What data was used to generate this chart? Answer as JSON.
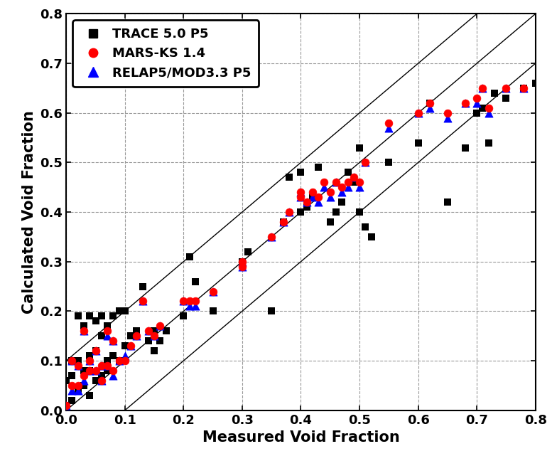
{
  "title": "",
  "xlabel": "Measured Void Fraction",
  "ylabel": "Calculated Void Fraction",
  "xlim": [
    0.0,
    0.8
  ],
  "ylim": [
    0.0,
    0.8
  ],
  "xticks": [
    0.0,
    0.1,
    0.2,
    0.3,
    0.4,
    0.5,
    0.6,
    0.7,
    0.8
  ],
  "yticks": [
    0.0,
    0.1,
    0.2,
    0.3,
    0.4,
    0.5,
    0.6,
    0.7,
    0.8
  ],
  "grid_style": "--",
  "grid_color": "#999999",
  "legend_loc": "upper left",
  "bg_color": "#ffffff",
  "line_color": "#000000",
  "line_width": 1.0,
  "reference_lines": [
    {
      "slope": 1.0,
      "intercept": 0.0
    },
    {
      "slope": 1.0,
      "intercept": 0.1
    },
    {
      "slope": 1.0,
      "intercept": -0.1
    }
  ],
  "trace_x": [
    0.0,
    0.0,
    0.01,
    0.01,
    0.01,
    0.02,
    0.02,
    0.02,
    0.03,
    0.03,
    0.03,
    0.04,
    0.04,
    0.04,
    0.04,
    0.05,
    0.05,
    0.05,
    0.06,
    0.06,
    0.06,
    0.07,
    0.07,
    0.07,
    0.08,
    0.08,
    0.09,
    0.09,
    0.1,
    0.1,
    0.11,
    0.12,
    0.13,
    0.14,
    0.15,
    0.15,
    0.16,
    0.17,
    0.2,
    0.21,
    0.22,
    0.25,
    0.3,
    0.31,
    0.35,
    0.37,
    0.38,
    0.4,
    0.4,
    0.41,
    0.42,
    0.43,
    0.45,
    0.46,
    0.47,
    0.48,
    0.49,
    0.5,
    0.5,
    0.51,
    0.52,
    0.55,
    0.6,
    0.62,
    0.65,
    0.68,
    0.7,
    0.71,
    0.72,
    0.73,
    0.75,
    0.78,
    0.8
  ],
  "trace_y": [
    0.01,
    0.06,
    0.02,
    0.07,
    0.1,
    0.04,
    0.1,
    0.19,
    0.05,
    0.08,
    0.17,
    0.03,
    0.08,
    0.11,
    0.19,
    0.06,
    0.12,
    0.18,
    0.07,
    0.15,
    0.19,
    0.08,
    0.1,
    0.17,
    0.11,
    0.19,
    0.1,
    0.2,
    0.13,
    0.2,
    0.15,
    0.16,
    0.25,
    0.14,
    0.12,
    0.16,
    0.14,
    0.16,
    0.19,
    0.31,
    0.26,
    0.2,
    0.3,
    0.32,
    0.2,
    0.38,
    0.47,
    0.4,
    0.48,
    0.41,
    0.43,
    0.49,
    0.38,
    0.4,
    0.42,
    0.48,
    0.46,
    0.4,
    0.53,
    0.37,
    0.35,
    0.5,
    0.54,
    0.62,
    0.42,
    0.53,
    0.6,
    0.61,
    0.54,
    0.64,
    0.63,
    0.65,
    0.66
  ],
  "mars_x": [
    0.0,
    0.01,
    0.01,
    0.02,
    0.02,
    0.03,
    0.03,
    0.04,
    0.04,
    0.05,
    0.05,
    0.06,
    0.06,
    0.07,
    0.07,
    0.08,
    0.08,
    0.09,
    0.1,
    0.11,
    0.12,
    0.13,
    0.14,
    0.15,
    0.16,
    0.2,
    0.21,
    0.22,
    0.25,
    0.3,
    0.3,
    0.35,
    0.37,
    0.38,
    0.4,
    0.4,
    0.41,
    0.42,
    0.43,
    0.44,
    0.45,
    0.46,
    0.47,
    0.48,
    0.49,
    0.5,
    0.51,
    0.55,
    0.6,
    0.62,
    0.65,
    0.68,
    0.7,
    0.71,
    0.72,
    0.75,
    0.78
  ],
  "mars_y": [
    0.01,
    0.05,
    0.1,
    0.05,
    0.09,
    0.07,
    0.16,
    0.08,
    0.1,
    0.08,
    0.12,
    0.06,
    0.09,
    0.09,
    0.16,
    0.08,
    0.14,
    0.1,
    0.1,
    0.13,
    0.15,
    0.22,
    0.16,
    0.15,
    0.17,
    0.22,
    0.22,
    0.22,
    0.24,
    0.29,
    0.3,
    0.35,
    0.38,
    0.4,
    0.43,
    0.44,
    0.42,
    0.44,
    0.43,
    0.46,
    0.44,
    0.46,
    0.45,
    0.46,
    0.47,
    0.46,
    0.5,
    0.58,
    0.6,
    0.62,
    0.6,
    0.62,
    0.63,
    0.65,
    0.61,
    0.65,
    0.65
  ],
  "relap_x": [
    0.0,
    0.01,
    0.01,
    0.02,
    0.02,
    0.03,
    0.03,
    0.04,
    0.04,
    0.05,
    0.05,
    0.06,
    0.06,
    0.07,
    0.07,
    0.08,
    0.08,
    0.09,
    0.1,
    0.11,
    0.12,
    0.13,
    0.14,
    0.15,
    0.16,
    0.2,
    0.21,
    0.22,
    0.25,
    0.3,
    0.3,
    0.35,
    0.37,
    0.38,
    0.4,
    0.4,
    0.41,
    0.42,
    0.43,
    0.44,
    0.45,
    0.46,
    0.47,
    0.48,
    0.49,
    0.5,
    0.51,
    0.55,
    0.6,
    0.62,
    0.65,
    0.68,
    0.7,
    0.71,
    0.72,
    0.75,
    0.78
  ],
  "relap_y": [
    0.01,
    0.04,
    0.1,
    0.04,
    0.09,
    0.06,
    0.16,
    0.08,
    0.1,
    0.08,
    0.12,
    0.06,
    0.09,
    0.09,
    0.15,
    0.07,
    0.14,
    0.1,
    0.11,
    0.13,
    0.15,
    0.22,
    0.16,
    0.15,
    0.17,
    0.22,
    0.21,
    0.21,
    0.24,
    0.29,
    0.3,
    0.35,
    0.38,
    0.4,
    0.43,
    0.44,
    0.42,
    0.43,
    0.42,
    0.45,
    0.43,
    0.46,
    0.44,
    0.45,
    0.47,
    0.45,
    0.5,
    0.57,
    0.6,
    0.61,
    0.59,
    0.62,
    0.62,
    0.65,
    0.6,
    0.65,
    0.65
  ],
  "trace_color": "#000000",
  "mars_color": "#ff0000",
  "relap_color": "#0000ff",
  "trace_marker": "s",
  "mars_marker": "o",
  "relap_marker": "^",
  "marker_size_trace": 55,
  "marker_size_mars": 60,
  "marker_size_relap": 65,
  "legend_labels": [
    "TRACE 5.0 P5",
    "MARS-KS 1.4",
    "RELAP5/MOD3.3 P5"
  ],
  "font_size_label": 15,
  "font_size_tick": 13,
  "font_size_legend": 13
}
